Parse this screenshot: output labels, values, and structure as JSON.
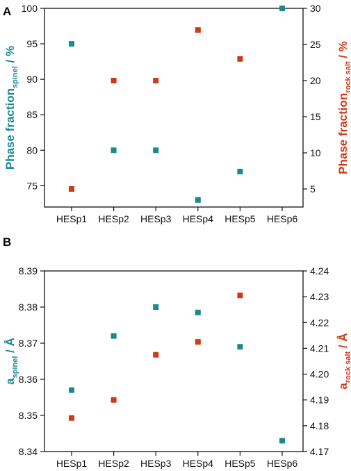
{
  "colors": {
    "teal": "#1a8a90",
    "red": "#cf3a17",
    "axis": "#111111"
  },
  "chart_data": [
    {
      "panel": "A",
      "type": "scatter",
      "categories": [
        "HESp1",
        "HESp2",
        "HESp3",
        "HESp4",
        "HESp5",
        "HESp6"
      ],
      "y_left": {
        "label_main": "Phase fraction",
        "label_sub": "spinel",
        "label_unit": " / %",
        "lim": [
          72,
          100
        ],
        "ticks": [
          75,
          80,
          85,
          90,
          95,
          100
        ],
        "tick_labels": [
          "75",
          "80",
          "85",
          "90",
          "95",
          "100"
        ],
        "color": "#1a8a90"
      },
      "y_right": {
        "label_main": "Phase fraction",
        "label_sub": "rock salt",
        "label_unit": " / %",
        "lim": [
          2.5,
          30
        ],
        "ticks": [
          5,
          10,
          15,
          20,
          25,
          30
        ],
        "tick_labels": [
          "5",
          "10",
          "15",
          "20",
          "25",
          "30"
        ],
        "color": "#cf3a17"
      },
      "series": [
        {
          "axis": "left",
          "color": "#1a8a90",
          "values": [
            95,
            80,
            80,
            73,
            77,
            100
          ]
        },
        {
          "axis": "right",
          "color": "#cf3a17",
          "values": [
            5,
            20,
            20,
            27,
            23,
            null
          ]
        }
      ]
    },
    {
      "panel": "B",
      "type": "scatter",
      "categories": [
        "HESp1",
        "HESp2",
        "HESp3",
        "HESp4",
        "HESp5",
        "HESp6"
      ],
      "y_left": {
        "label_main": "a",
        "label_sub": "spinel",
        "label_unit": " / Å",
        "lim": [
          8.34,
          8.39
        ],
        "ticks": [
          8.34,
          8.35,
          8.36,
          8.37,
          8.38,
          8.39
        ],
        "tick_labels": [
          "8.34",
          "8.35",
          "8.36",
          "8.37",
          "8.38",
          "8.39"
        ],
        "color": "#1a8a90"
      },
      "y_right": {
        "label_main": "a",
        "label_sub": "rock salt",
        "label_unit": " / Å",
        "lim": [
          4.17,
          4.24
        ],
        "ticks": [
          4.17,
          4.18,
          4.19,
          4.2,
          4.21,
          4.22,
          4.23,
          4.24
        ],
        "tick_labels": [
          "4.17",
          "4.18",
          "4.19",
          "4.20",
          "4.21",
          "4.22",
          "4.23",
          "4.24"
        ],
        "color": "#cf3a17"
      },
      "series": [
        {
          "axis": "left",
          "color": "#1a8a90",
          "values": [
            8.357,
            8.372,
            8.38,
            8.3785,
            8.369,
            8.343
          ]
        },
        {
          "axis": "right",
          "color": "#cf3a17",
          "values": [
            4.183,
            4.19,
            4.2075,
            4.2125,
            4.2305,
            null
          ]
        }
      ]
    }
  ]
}
